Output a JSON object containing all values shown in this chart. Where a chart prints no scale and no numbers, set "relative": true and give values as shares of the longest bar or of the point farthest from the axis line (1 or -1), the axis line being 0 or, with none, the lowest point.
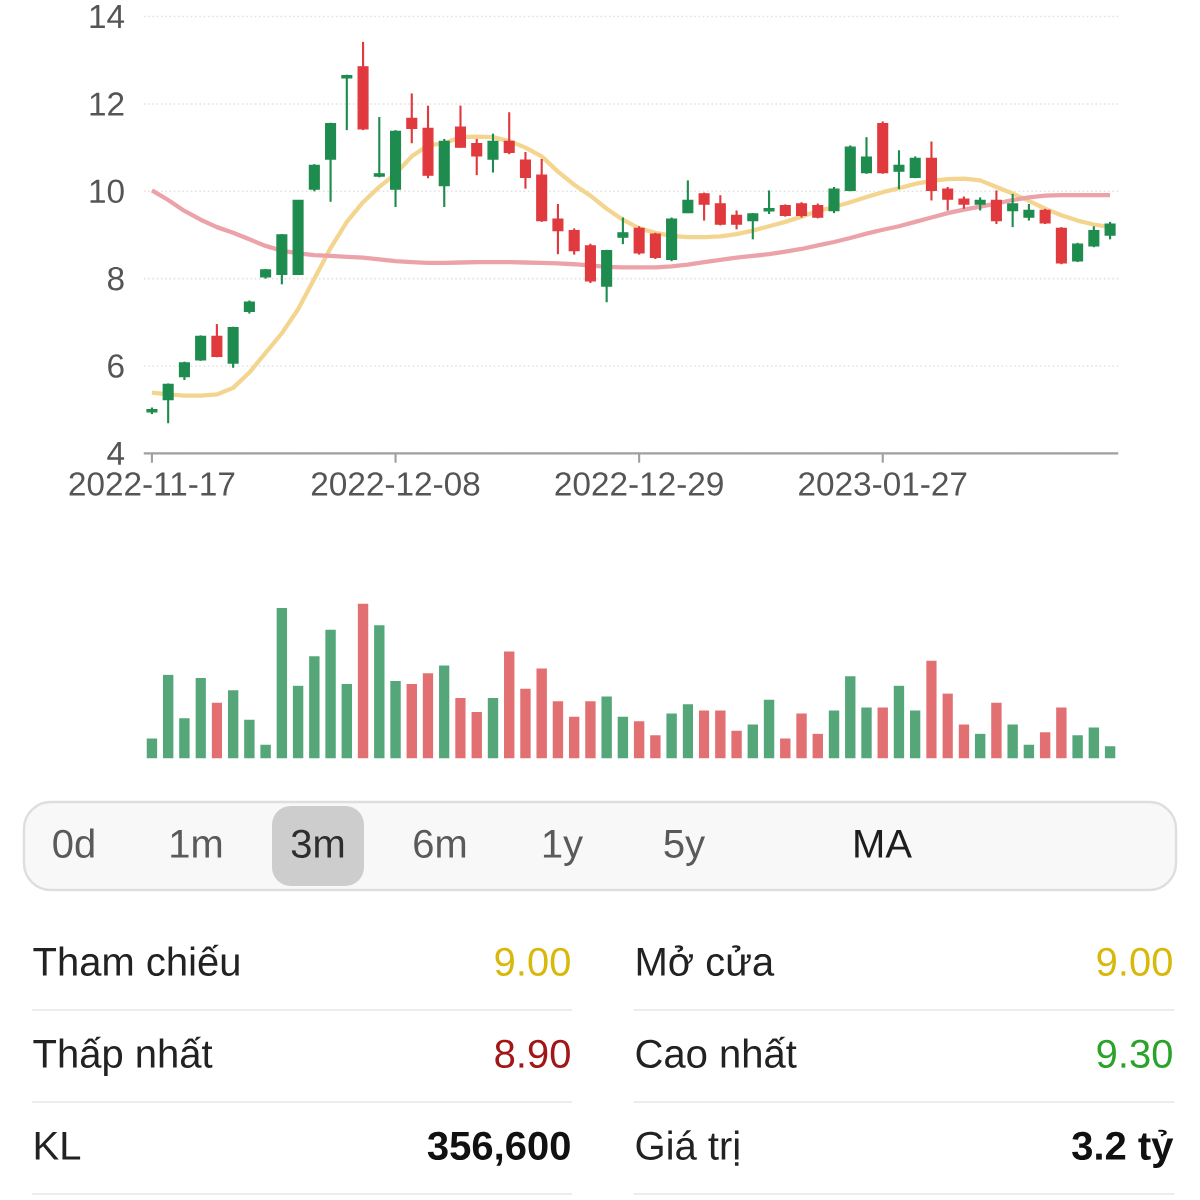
{
  "chart_data": [
    {
      "type": "candlestick",
      "categories": [
        "2022-11-17",
        null,
        null,
        null,
        null,
        null,
        null,
        null,
        null,
        null,
        null,
        null,
        null,
        null,
        null,
        "2022-12-08",
        null,
        null,
        null,
        null,
        null,
        null,
        null,
        null,
        null,
        null,
        null,
        null,
        null,
        null,
        "2022-12-29",
        null,
        null,
        null,
        null,
        null,
        null,
        null,
        null,
        null,
        null,
        null,
        null,
        null,
        null,
        "2023-01-27",
        null,
        null,
        null,
        null,
        null,
        null,
        null,
        null,
        null,
        null,
        null,
        null,
        null,
        null
      ],
      "ohlc": [
        [
          4.95,
          5.05,
          4.9,
          5.0
        ],
        [
          5.23,
          5.6,
          4.69,
          5.58
        ],
        [
          5.76,
          6.1,
          5.68,
          6.07
        ],
        [
          6.14,
          6.7,
          6.12,
          6.68
        ],
        [
          6.68,
          6.96,
          6.2,
          6.22
        ],
        [
          6.07,
          6.9,
          5.96,
          6.88
        ],
        [
          7.25,
          7.5,
          7.2,
          7.46
        ],
        [
          8.04,
          8.22,
          8.0,
          8.2
        ],
        [
          8.1,
          9.02,
          7.87,
          9.0
        ],
        [
          8.1,
          9.8,
          8.1,
          9.79
        ],
        [
          10.05,
          10.62,
          10.0,
          10.59
        ],
        [
          10.74,
          11.57,
          9.76,
          11.55
        ],
        [
          12.6,
          12.67,
          11.4,
          12.65
        ],
        [
          12.85,
          13.42,
          11.4,
          11.43
        ],
        [
          10.35,
          11.7,
          10.32,
          10.4
        ],
        [
          10.05,
          11.4,
          9.64,
          11.37
        ],
        [
          11.67,
          12.24,
          11.1,
          11.44
        ],
        [
          11.44,
          11.96,
          10.3,
          10.37
        ],
        [
          10.13,
          11.2,
          9.64,
          11.14
        ],
        [
          11.47,
          11.96,
          11.0,
          11.01
        ],
        [
          11.09,
          11.2,
          10.37,
          10.81
        ],
        [
          10.74,
          11.32,
          10.43,
          11.14
        ],
        [
          11.14,
          11.81,
          10.85,
          10.89
        ],
        [
          10.71,
          10.9,
          10.06,
          10.32
        ],
        [
          10.37,
          10.74,
          9.3,
          9.33
        ],
        [
          9.36,
          9.71,
          8.56,
          9.1
        ],
        [
          9.1,
          9.15,
          8.55,
          8.64
        ],
        [
          8.75,
          8.8,
          7.9,
          7.95
        ],
        [
          7.83,
          8.66,
          7.46,
          8.64
        ],
        [
          8.95,
          9.4,
          8.79,
          9.05
        ],
        [
          9.15,
          9.2,
          8.55,
          8.59
        ],
        [
          9.02,
          9.05,
          8.45,
          8.49
        ],
        [
          8.44,
          9.4,
          8.4,
          9.36
        ],
        [
          9.51,
          10.25,
          9.5,
          9.79
        ],
        [
          9.94,
          9.97,
          9.33,
          9.71
        ],
        [
          9.71,
          9.91,
          9.22,
          9.25
        ],
        [
          9.45,
          9.56,
          9.13,
          9.25
        ],
        [
          9.33,
          9.5,
          8.9,
          9.48
        ],
        [
          9.55,
          10.02,
          9.48,
          9.6
        ],
        [
          9.67,
          9.7,
          9.42,
          9.45
        ],
        [
          9.71,
          9.75,
          9.4,
          9.45
        ],
        [
          9.67,
          9.72,
          9.38,
          9.41
        ],
        [
          9.56,
          10.1,
          9.5,
          10.05
        ],
        [
          10.02,
          11.05,
          10.0,
          11.01
        ],
        [
          10.43,
          11.24,
          10.4,
          10.78
        ],
        [
          11.55,
          11.6,
          10.4,
          10.43
        ],
        [
          10.46,
          10.94,
          10.05,
          10.59
        ],
        [
          10.32,
          10.8,
          10.3,
          10.75
        ],
        [
          10.75,
          11.14,
          9.79,
          10.02
        ],
        [
          10.05,
          10.1,
          9.56,
          9.82
        ],
        [
          9.82,
          9.88,
          9.6,
          9.71
        ],
        [
          9.71,
          9.86,
          9.56,
          9.79
        ],
        [
          9.79,
          10.02,
          9.25,
          9.33
        ],
        [
          9.56,
          9.94,
          9.18,
          9.71
        ],
        [
          9.41,
          9.71,
          9.33,
          9.56
        ],
        [
          9.56,
          9.6,
          9.25,
          9.28
        ],
        [
          9.15,
          9.18,
          8.33,
          8.36
        ],
        [
          8.41,
          8.82,
          8.38,
          8.79
        ],
        [
          8.75,
          9.2,
          8.72,
          9.1
        ],
        [
          9.0,
          9.3,
          8.9,
          9.25
        ]
      ],
      "colors": [
        "#1e8c4e",
        "#1e8c4e",
        "#1e8c4e",
        "#1e8c4e",
        "#e03a3e",
        "#1e8c4e",
        "#1e8c4e",
        "#1e8c4e",
        "#1e8c4e",
        "#1e8c4e",
        "#1e8c4e",
        "#1e8c4e",
        "#1e8c4e",
        "#e03a3e",
        "#1e8c4e",
        "#1e8c4e",
        "#e03a3e",
        "#e03a3e",
        "#1e8c4e",
        "#e03a3e",
        "#e03a3e",
        "#1e8c4e",
        "#e03a3e",
        "#e03a3e",
        "#e03a3e",
        "#e03a3e",
        "#e03a3e",
        "#e03a3e",
        "#1e8c4e",
        "#1e8c4e",
        "#e03a3e",
        "#e03a3e",
        "#1e8c4e",
        "#1e8c4e",
        "#e03a3e",
        "#e03a3e",
        "#e03a3e",
        "#1e8c4e",
        "#1e8c4e",
        "#e03a3e",
        "#e03a3e",
        "#e03a3e",
        "#1e8c4e",
        "#1e8c4e",
        "#1e8c4e",
        "#e03a3e",
        "#1e8c4e",
        "#1e8c4e",
        "#e03a3e",
        "#e03a3e",
        "#e03a3e",
        "#1e8c4e",
        "#e03a3e",
        "#1e8c4e",
        "#1e8c4e",
        "#e03a3e",
        "#e03a3e",
        "#1e8c4e",
        "#1e8c4e",
        "#1e8c4e"
      ],
      "series": [
        {
          "type": "line",
          "color": "#f3d58f",
          "values": [
            5.39,
            5.35,
            5.32,
            5.32,
            5.35,
            5.5,
            5.85,
            6.3,
            6.75,
            7.3,
            8.0,
            8.7,
            9.3,
            9.75,
            10.1,
            10.4,
            10.8,
            11.05,
            11.1,
            11.24,
            11.25,
            11.24,
            11.15,
            11.0,
            10.8,
            10.45,
            10.15,
            9.9,
            9.6,
            9.35,
            9.15,
            9.05,
            8.98,
            8.95,
            8.95,
            8.97,
            9.02,
            9.1,
            9.2,
            9.3,
            9.42,
            9.55,
            9.64,
            9.75,
            9.87,
            9.98,
            10.07,
            10.17,
            10.24,
            10.28,
            10.29,
            10.25,
            10.1,
            9.95,
            9.78,
            9.6,
            9.45,
            9.33,
            9.24,
            9.18
          ]
        },
        {
          "type": "line",
          "color": "#eba3a9",
          "values": [
            10.02,
            9.8,
            9.55,
            9.35,
            9.18,
            9.05,
            8.9,
            8.75,
            8.64,
            8.58,
            8.54,
            8.52,
            8.5,
            8.48,
            8.44,
            8.4,
            8.38,
            8.36,
            8.36,
            8.37,
            8.38,
            8.38,
            8.38,
            8.37,
            8.36,
            8.35,
            8.33,
            8.3,
            8.27,
            8.26,
            8.26,
            8.26,
            8.28,
            8.32,
            8.38,
            8.43,
            8.48,
            8.52,
            8.56,
            8.62,
            8.68,
            8.76,
            8.84,
            8.93,
            9.03,
            9.12,
            9.2,
            9.3,
            9.4,
            9.5,
            9.58,
            9.65,
            9.72,
            9.8,
            9.86,
            9.9,
            9.91,
            9.91,
            9.91,
            9.91
          ]
        }
      ],
      "ylim": [
        4,
        14
      ],
      "yticks": [
        4,
        6,
        8,
        10,
        12,
        14
      ],
      "grid": "y"
    },
    {
      "type": "bar",
      "categories": [
        "2022-11-17",
        null,
        null,
        null,
        null,
        null,
        null,
        null,
        null,
        null,
        null,
        null,
        null,
        null,
        null,
        "2022-12-08",
        null,
        null,
        null,
        null,
        null,
        null,
        null,
        null,
        null,
        null,
        null,
        null,
        null,
        null,
        "2022-12-29",
        null,
        null,
        null,
        null,
        null,
        null,
        null,
        null,
        null,
        null,
        null,
        null,
        null,
        null,
        "2023-01-27",
        null,
        null,
        null,
        null,
        null,
        null,
        null,
        null,
        null,
        null,
        null,
        null,
        null,
        null
      ],
      "values": [
        0.13,
        0.54,
        0.26,
        0.52,
        0.36,
        0.44,
        0.25,
        0.09,
        0.97,
        0.47,
        0.66,
        0.83,
        0.48,
        1.0,
        0.86,
        0.5,
        0.48,
        0.55,
        0.6,
        0.39,
        0.3,
        0.39,
        0.69,
        0.45,
        0.58,
        0.37,
        0.27,
        0.37,
        0.4,
        0.27,
        0.24,
        0.15,
        0.29,
        0.35,
        0.31,
        0.31,
        0.18,
        0.22,
        0.38,
        0.13,
        0.29,
        0.16,
        0.31,
        0.53,
        0.33,
        0.33,
        0.47,
        0.31,
        0.63,
        0.42,
        0.22,
        0.16,
        0.36,
        0.22,
        0.09,
        0.17,
        0.33,
        0.15,
        0.2,
        0.08
      ],
      "colors": [
        "#55a77a",
        "#55a77a",
        "#55a77a",
        "#55a77a",
        "#e27072",
        "#55a77a",
        "#55a77a",
        "#55a77a",
        "#55a77a",
        "#55a77a",
        "#55a77a",
        "#55a77a",
        "#55a77a",
        "#e27072",
        "#55a77a",
        "#55a77a",
        "#e27072",
        "#e27072",
        "#55a77a",
        "#e27072",
        "#e27072",
        "#55a77a",
        "#e27072",
        "#e27072",
        "#e27072",
        "#e27072",
        "#e27072",
        "#e27072",
        "#55a77a",
        "#55a77a",
        "#e27072",
        "#e27072",
        "#55a77a",
        "#55a77a",
        "#e27072",
        "#e27072",
        "#e27072",
        "#55a77a",
        "#55a77a",
        "#e27072",
        "#e27072",
        "#e27072",
        "#55a77a",
        "#55a77a",
        "#55a77a",
        "#e27072",
        "#55a77a",
        "#55a77a",
        "#e27072",
        "#e27072",
        "#e27072",
        "#55a77a",
        "#e27072",
        "#55a77a",
        "#55a77a",
        "#e27072",
        "#e27072",
        "#55a77a",
        "#55a77a",
        "#55a77a"
      ],
      "relative": true,
      "tick_labels": false
    },
    {
      "type": "other",
      "annotations": [
        "0d",
        "1m",
        "3m",
        "6m",
        "1y",
        "5y",
        "MA"
      ],
      "colors": [
        "#5a5a5a",
        "#5a5a5a",
        "#2e2e2e",
        "#5a5a5a",
        "#5a5a5a",
        "#5a5a5a",
        "#1e1e1e"
      ]
    },
    {
      "type": "other",
      "annotations": [
        "Tham chiếu",
        "9.00",
        "Mở cửa",
        "9.00",
        "Thấp nhất",
        "8.90",
        "Cao nhất",
        "9.30",
        "KL",
        "356,600",
        "Giá trị",
        "3.2 tỷ"
      ],
      "colors": [
        "#222222",
        "#d9b80c",
        "#222222",
        "#d9b80c",
        "#222222",
        "#a31616",
        "#222222",
        "#2ba32b",
        "#222222",
        "#111111",
        "#222222",
        "#111111"
      ]
    }
  ]
}
